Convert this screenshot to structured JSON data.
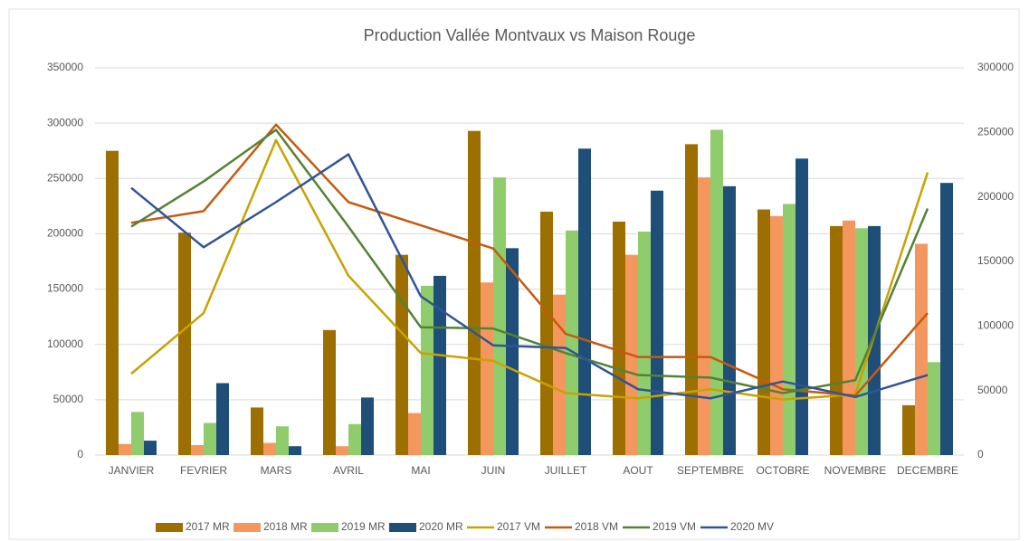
{
  "chart_data": {
    "type": "bar",
    "title": "Production Vallée Montvaux vs Maison Rouge",
    "categories": [
      "JANVIER",
      "FEVRIER",
      "MARS",
      "AVRIL",
      "MAI",
      "JUIN",
      "JUILLET",
      "AOUT",
      "SEPTEMBRE",
      "OCTOBRE",
      "NOVEMBRE",
      "DECEMBRE"
    ],
    "ylim": [
      0,
      350000
    ],
    "yticks": [
      0,
      50000,
      100000,
      150000,
      200000,
      250000,
      300000,
      350000
    ],
    "y2lim": [
      0,
      300000
    ],
    "y2ticks": [
      0,
      50000,
      100000,
      150000,
      200000,
      250000,
      300000
    ],
    "grid": true,
    "legend": "bottom",
    "series": [
      {
        "name": "2017 MR",
        "type": "bar",
        "color": "#9c6f00",
        "values": [
          275000,
          201000,
          43000,
          113000,
          181000,
          293000,
          220000,
          211000,
          281000,
          222000,
          207000,
          45000
        ]
      },
      {
        "name": "2018 MR",
        "type": "bar",
        "color": "#f4975f",
        "values": [
          10000,
          9000,
          11000,
          8000,
          38000,
          156000,
          145000,
          181000,
          251000,
          216000,
          212000,
          191000
        ]
      },
      {
        "name": "2019 MR",
        "type": "bar",
        "color": "#8fcd6c",
        "values": [
          39000,
          29000,
          26000,
          28000,
          153000,
          251000,
          203000,
          202000,
          294000,
          227000,
          205000,
          84000
        ]
      },
      {
        "name": "2020 MR",
        "type": "bar",
        "color": "#1f4e79",
        "values": [
          13000,
          65000,
          8000,
          52000,
          162000,
          187000,
          277000,
          239000,
          243000,
          268000,
          207000,
          246000
        ]
      },
      {
        "name": "2017 VM",
        "type": "line",
        "axis": "y2",
        "color": "#c9a200",
        "values": [
          63000,
          110000,
          244000,
          139000,
          79000,
          73000,
          48000,
          44000,
          51000,
          43000,
          47000,
          219000
        ]
      },
      {
        "name": "2018 VM",
        "type": "line",
        "axis": "y2",
        "color": "#c55a11",
        "values": [
          180000,
          189000,
          256000,
          196000,
          178000,
          160000,
          94000,
          76000,
          76000,
          51000,
          46000,
          110000
        ]
      },
      {
        "name": "2019 VM",
        "type": "line",
        "axis": "y2",
        "color": "#548235",
        "values": [
          177000,
          212000,
          252000,
          177000,
          99000,
          98000,
          79000,
          62000,
          60000,
          48000,
          58000,
          191000
        ]
      },
      {
        "name": "2020 MV",
        "type": "line",
        "axis": "y2",
        "color": "#2f5597",
        "values": [
          207000,
          161000,
          196000,
          233000,
          123000,
          85000,
          83000,
          51000,
          44000,
          57000,
          45000,
          62000
        ]
      }
    ]
  }
}
